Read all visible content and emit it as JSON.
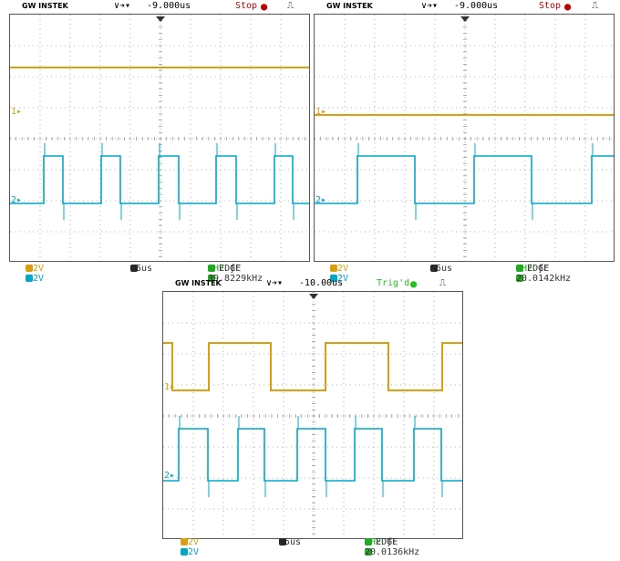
{
  "colors": {
    "ch1": "#d8a010",
    "ch2": "#00a8c8",
    "grid": "#9a9a9a",
    "stop": "#c00000",
    "trig": "#22c322",
    "freq": "#22aa22"
  },
  "scopes": [
    {
      "brand": "GW INSTEK",
      "trigger_icon": "trigger-position-icon",
      "time_offset": "-9.000us",
      "status": "Stop",
      "status_icon": "stop-dot-icon",
      "pulse_icon": "pulse-icon",
      "ch1_marker": "1",
      "ch2_marker": "2",
      "ch1_scale": "2V",
      "ch2_scale": "2V",
      "timebase": "25us",
      "trigger_source": "CH2",
      "trigger_type": "EDGE",
      "trigger_slope": "ƒF",
      "frequency": "39.8229kHz"
    },
    {
      "brand": "GW INSTEK",
      "trigger_icon": "trigger-position-icon",
      "time_offset": "-9.000us",
      "status": "Stop",
      "status_icon": "stop-dot-icon",
      "pulse_icon": "pulse-icon",
      "ch1_marker": "1",
      "ch2_marker": "2",
      "ch1_scale": "2V",
      "ch2_scale": "2V",
      "timebase": "25us",
      "trigger_source": "CH2",
      "trigger_type": "EDGE",
      "trigger_slope": "ƒF",
      "frequency": "20.0142kHz"
    },
    {
      "brand": "GW INSTEK",
      "trigger_icon": "trigger-position-icon",
      "time_offset": "-10.00us",
      "status": "Trig'd",
      "status_icon": "trig-dot-icon",
      "pulse_icon": "pulse-icon",
      "ch1_marker": "1",
      "ch2_marker": "2",
      "ch1_scale": "2V",
      "ch2_scale": "2V",
      "timebase": "25us",
      "trigger_source": "CH2",
      "trigger_type": "EDGE",
      "trigger_slope": "ƒF",
      "frequency": "20.0136kHz"
    }
  ]
}
